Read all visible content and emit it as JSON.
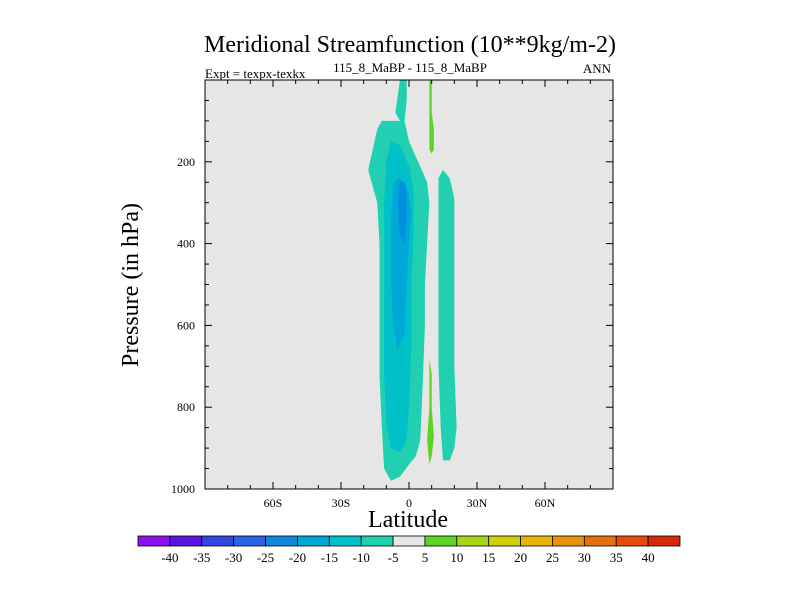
{
  "chart_data": {
    "type": "contour",
    "title": "Meridional Streamfunction (10**9kg/m-2)",
    "subtitle_left": "Expt = texpx-texkx",
    "subtitle_center": "115_8_MaBP - 115_8_MaBP",
    "subtitle_right": "ANN",
    "xlabel": "Latitude",
    "ylabel": "Pressure (in hPa)",
    "xlim": [
      -90,
      90
    ],
    "ylim": [
      0,
      1000
    ],
    "y_inverted": true,
    "x_ticks": [
      {
        "value": -60,
        "label": "60S"
      },
      {
        "value": -30,
        "label": "30S"
      },
      {
        "value": 0,
        "label": "0"
      },
      {
        "value": 30,
        "label": "30N"
      },
      {
        "value": 60,
        "label": "60N"
      }
    ],
    "y_ticks": [
      {
        "value": 200,
        "label": "200"
      },
      {
        "value": 400,
        "label": "400"
      },
      {
        "value": 600,
        "label": "600"
      },
      {
        "value": 800,
        "label": "800"
      },
      {
        "value": 1000,
        "label": "1000"
      }
    ],
    "background_color": "#e6e6e6",
    "regions": [
      {
        "name": "southern-cell",
        "level": -5,
        "color": "#20d0b0",
        "points": [
          [
            -4,
            0
          ],
          [
            -6,
            8
          ],
          [
            -4,
            10
          ],
          [
            -12,
            10
          ],
          [
            -14,
            12
          ],
          [
            -16,
            17
          ],
          [
            -18,
            22
          ],
          [
            -14,
            30
          ],
          [
            -13,
            40
          ],
          [
            -13,
            50
          ],
          [
            -13,
            62
          ],
          [
            -13,
            72
          ],
          [
            -12,
            85
          ],
          [
            -11,
            95
          ],
          [
            -8,
            98
          ],
          [
            -4,
            97
          ],
          [
            0,
            94
          ],
          [
            3,
            92
          ],
          [
            5,
            88
          ],
          [
            6,
            75
          ],
          [
            7,
            60
          ],
          [
            7,
            50
          ],
          [
            8,
            40
          ],
          [
            9,
            30
          ],
          [
            8,
            25
          ],
          [
            4,
            20
          ],
          [
            0,
            15
          ],
          [
            -2,
            10
          ],
          [
            -1,
            5
          ],
          [
            -1,
            0
          ]
        ]
      },
      {
        "name": "southern-core-outer",
        "level": -10,
        "color": "#00c0c8",
        "points": [
          [
            -8,
            15
          ],
          [
            -10,
            20
          ],
          [
            -11,
            30
          ],
          [
            -11,
            45
          ],
          [
            -11,
            60
          ],
          [
            -11,
            72
          ],
          [
            -10,
            84
          ],
          [
            -8,
            90
          ],
          [
            -4,
            91
          ],
          [
            -1,
            88
          ],
          [
            0,
            80
          ],
          [
            1,
            65
          ],
          [
            1,
            50
          ],
          [
            2,
            38
          ],
          [
            2,
            27
          ],
          [
            0,
            21
          ],
          [
            -4,
            16
          ]
        ]
      },
      {
        "name": "southern-core-inner",
        "level": -15,
        "color": "#00a8d8",
        "points": [
          [
            -7,
            25
          ],
          [
            -8,
            35
          ],
          [
            -8,
            48
          ],
          [
            -7,
            60
          ],
          [
            -5,
            66
          ],
          [
            -2,
            62
          ],
          [
            -1,
            50
          ],
          [
            0,
            40
          ],
          [
            1,
            32
          ],
          [
            -1,
            26
          ],
          [
            -4,
            24
          ]
        ]
      },
      {
        "name": "southern-core-max",
        "level": -20,
        "color": "#0090e0",
        "points": [
          [
            -4,
            25
          ],
          [
            -5,
            31
          ],
          [
            -4,
            38
          ],
          [
            -2,
            40
          ],
          [
            -1,
            34
          ],
          [
            -1,
            28
          ],
          [
            -2,
            25
          ]
        ]
      },
      {
        "name": "northern-cell",
        "level": 5,
        "color": "#20d0b0",
        "points": [
          [
            15,
            22
          ],
          [
            18,
            24
          ],
          [
            20,
            29
          ],
          [
            20,
            42
          ],
          [
            20,
            55
          ],
          [
            20,
            70
          ],
          [
            21,
            85
          ],
          [
            20,
            90
          ],
          [
            18,
            93
          ],
          [
            15,
            93
          ],
          [
            14,
            85
          ],
          [
            13,
            70
          ],
          [
            13,
            55
          ],
          [
            13,
            40
          ],
          [
            13,
            30
          ],
          [
            13,
            24
          ]
        ]
      },
      {
        "name": "ascending-branch-upper",
        "level": 5,
        "color": "#5ed422",
        "points": [
          [
            9,
            0
          ],
          [
            10,
            0
          ],
          [
            10,
            8
          ],
          [
            11,
            12
          ],
          [
            11,
            17
          ],
          [
            10,
            18
          ],
          [
            9,
            17
          ],
          [
            9,
            10
          ],
          [
            9,
            5
          ]
        ]
      },
      {
        "name": "ascending-branch-lower",
        "level": 5,
        "color": "#5ed422",
        "points": [
          [
            9,
            68
          ],
          [
            10,
            72
          ],
          [
            10,
            80
          ],
          [
            11,
            87
          ],
          [
            10,
            92
          ],
          [
            9,
            94
          ],
          [
            8,
            88
          ],
          [
            9,
            80
          ],
          [
            9,
            72
          ]
        ]
      }
    ],
    "colorbar": {
      "levels": [
        -40,
        -35,
        -30,
        -25,
        -20,
        -15,
        -10,
        -5,
        5,
        10,
        15,
        20,
        25,
        30,
        35,
        40
      ],
      "colors": [
        "#8c12ec",
        "#5a14e0",
        "#3246e0",
        "#2a64e4",
        "#1288dc",
        "#00a8d8",
        "#00c0c8",
        "#20d0b0",
        "#e6e6e6",
        "#5ed422",
        "#a6d616",
        "#d0d00a",
        "#e8b40a",
        "#e8920a",
        "#e6700a",
        "#e24e0a",
        "#d8280a"
      ]
    }
  }
}
